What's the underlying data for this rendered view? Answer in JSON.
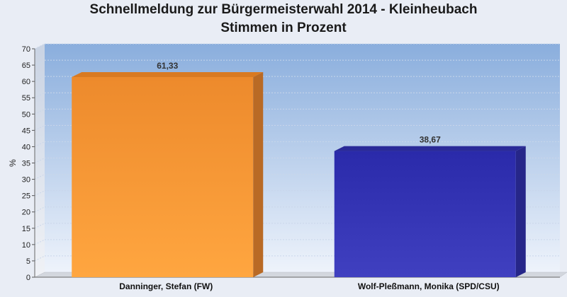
{
  "chart_data": {
    "type": "bar",
    "title": "Schnellmeldung zur Bürgermeisterwahl 2014 - Kleinheubach",
    "subtitle": "Stimmen in Prozent",
    "xlabel": "",
    "ylabel": "%",
    "ylim": [
      0,
      70
    ],
    "yticks": [
      0,
      5,
      10,
      15,
      20,
      25,
      30,
      35,
      40,
      45,
      50,
      55,
      60,
      65,
      70
    ],
    "grid": true,
    "categories": [
      "Danninger, Stefan (FW)",
      "Wolf-Pleßmann, Monika (SPD/CSU)"
    ],
    "values": [
      61.33,
      38.67
    ],
    "value_labels": [
      "61,33",
      "38,67"
    ],
    "colors": [
      "#f0902f",
      "#3333b2"
    ]
  }
}
